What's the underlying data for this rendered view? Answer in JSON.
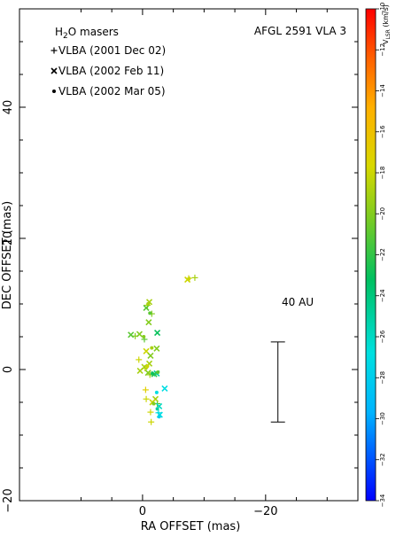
{
  "chart_data": {
    "type": "scatter",
    "title": "AFGL 2591 VLA 3",
    "legend_title": "H2O masers",
    "legend_title_main": "H",
    "legend_title_sub": "2",
    "legend_title_rest": "O masers",
    "legend_placement": "top-left",
    "xlabel": "RA OFFSET (mas)",
    "ylabel": "DEC OFFSET (mas)",
    "xlim": [
      20,
      -35
    ],
    "ylim": [
      -20,
      55
    ],
    "x_ticks": [
      0,
      -20
    ],
    "x_tick_labels": [
      "0",
      "−20"
    ],
    "y_ticks": [
      -20,
      0,
      20,
      40
    ],
    "y_tick_labels": [
      "−20",
      "0",
      "20",
      "40"
    ],
    "grid": false,
    "scale_bar": {
      "label": "40 AU",
      "x": -22,
      "y_bottom": -8,
      "y_top": 4.2
    },
    "colorbar": {
      "label": "V",
      "label_sub": "LSR",
      "label_unit": "(km/s)",
      "min": -34,
      "max": -10,
      "tick_values": [
        -10,
        -12,
        -14,
        -16,
        -18,
        -20,
        -22,
        -24,
        -26,
        -28,
        -30,
        -32,
        -34
      ],
      "tick_labels": [
        "−10",
        "−12",
        "−14",
        "−16",
        "−18",
        "−20",
        "−22",
        "−24",
        "−26",
        "−28",
        "−30",
        "−32",
        "−34"
      ]
    },
    "series": [
      {
        "name": "VLBA (2001 Dec 02)",
        "marker": "+",
        "points": [
          {
            "x": -7.5,
            "y": 13.9,
            "v": -18
          },
          {
            "x": -8.5,
            "y": 14.0,
            "v": -19
          },
          {
            "x": -0.8,
            "y": 9.8,
            "v": -19
          },
          {
            "x": -1.5,
            "y": 8.5,
            "v": -20
          },
          {
            "x": 1.2,
            "y": 5.1,
            "v": -20
          },
          {
            "x": -0.3,
            "y": 4.6,
            "v": -21
          },
          {
            "x": 0.6,
            "y": 1.5,
            "v": -18
          },
          {
            "x": -0.4,
            "y": 0.2,
            "v": -18
          },
          {
            "x": -1.2,
            "y": -0.8,
            "v": -19
          },
          {
            "x": -0.5,
            "y": -3.1,
            "v": -17
          },
          {
            "x": -0.6,
            "y": -4.5,
            "v": -18
          },
          {
            "x": -1.3,
            "y": -6.5,
            "v": -18
          },
          {
            "x": -1.4,
            "y": -8.0,
            "v": -18
          },
          {
            "x": -2.4,
            "y": -5.2,
            "v": -21
          },
          {
            "x": -2.6,
            "y": -6.6,
            "v": -27
          }
        ]
      },
      {
        "name": "VLBA (2002 Feb 11)",
        "marker": "x",
        "points": [
          {
            "x": -7.3,
            "y": 13.7,
            "v": -18
          },
          {
            "x": -1.1,
            "y": 10.3,
            "v": -19
          },
          {
            "x": -0.6,
            "y": 9.4,
            "v": -21
          },
          {
            "x": -1.0,
            "y": 7.2,
            "v": -20
          },
          {
            "x": -2.4,
            "y": 5.6,
            "v": -23
          },
          {
            "x": 1.9,
            "y": 5.3,
            "v": -21
          },
          {
            "x": 0.5,
            "y": 5.4,
            "v": -20
          },
          {
            "x": -2.3,
            "y": 3.2,
            "v": -20
          },
          {
            "x": -0.6,
            "y": 2.8,
            "v": -18
          },
          {
            "x": -1.3,
            "y": 2.1,
            "v": -20
          },
          {
            "x": -1.1,
            "y": 0.9,
            "v": -19
          },
          {
            "x": -0.3,
            "y": 0.4,
            "v": -19
          },
          {
            "x": 0.4,
            "y": -0.2,
            "v": -19
          },
          {
            "x": -0.9,
            "y": -0.5,
            "v": -20
          },
          {
            "x": -2.3,
            "y": -0.6,
            "v": -25
          },
          {
            "x": -1.9,
            "y": -0.7,
            "v": -22
          },
          {
            "x": -2.1,
            "y": -4.5,
            "v": -19
          },
          {
            "x": -1.6,
            "y": -5.0,
            "v": -18
          },
          {
            "x": -2.7,
            "y": -5.6,
            "v": -26
          },
          {
            "x": -2.8,
            "y": -6.9,
            "v": -27
          },
          {
            "x": -3.6,
            "y": -2.9,
            "v": -27
          }
        ]
      },
      {
        "name": "VLBA (2002 Mar 05)",
        "marker": "dot",
        "points": [
          {
            "x": -7.5,
            "y": 13.8,
            "v": -18
          },
          {
            "x": -0.9,
            "y": 10.0,
            "v": -19
          },
          {
            "x": -1.2,
            "y": 8.6,
            "v": -21
          },
          {
            "x": -0.2,
            "y": 5.0,
            "v": -20
          },
          {
            "x": -1.5,
            "y": 3.3,
            "v": -19
          },
          {
            "x": -0.8,
            "y": 0.5,
            "v": -18
          },
          {
            "x": -1.6,
            "y": -0.6,
            "v": -23
          },
          {
            "x": -2.5,
            "y": -0.4,
            "v": -21
          },
          {
            "x": -2.3,
            "y": -3.5,
            "v": -27
          },
          {
            "x": -1.8,
            "y": -5.2,
            "v": -20
          },
          {
            "x": -2.4,
            "y": -6.0,
            "v": -25
          },
          {
            "x": -2.7,
            "y": -7.2,
            "v": -28
          }
        ]
      }
    ]
  }
}
